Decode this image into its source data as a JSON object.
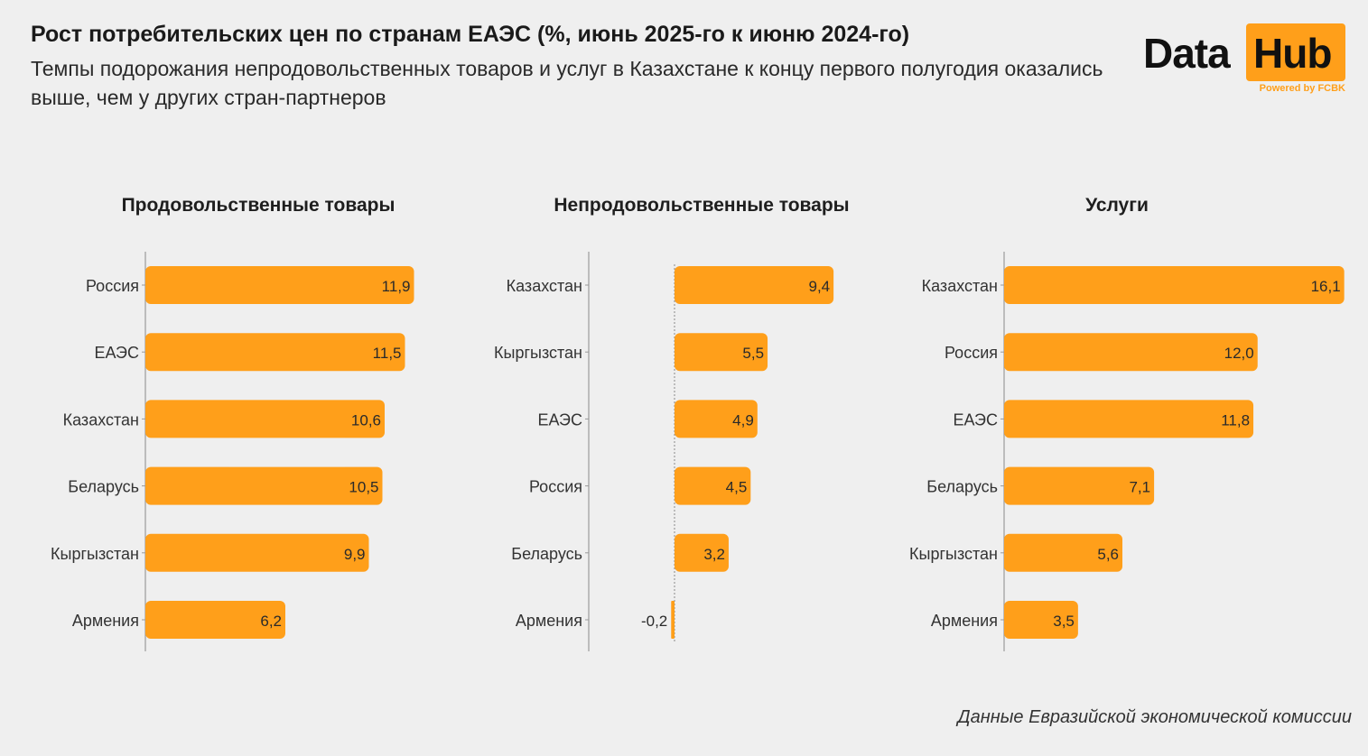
{
  "header": {
    "title": "Рост потребительских цен по странам ЕАЭС (%, июнь 2025-го к июню 2024-го)",
    "subtitle": "Темпы подорожания непродовольственных товаров и услуг в Казахстане к концу первого полугодия оказались выше, чем у других стран-партнеров"
  },
  "logo": {
    "word1": "Data",
    "word2": "Hub",
    "powered": "Powered by FCBK"
  },
  "footer": {
    "source": "Данные Евразийской экономической комиссии"
  },
  "colors": {
    "bar": "#ff9f1a",
    "text": "#333333",
    "axis": "#9a9a9a"
  },
  "chart_data": [
    {
      "type": "bar",
      "orientation": "horizontal",
      "title": "Продовольственные товары",
      "categories": [
        "Россия",
        "ЕАЭС",
        "Казахстан",
        "Беларусь",
        "Кыргызстан",
        "Армения"
      ],
      "values": [
        11.9,
        11.5,
        10.6,
        10.5,
        9.9,
        6.2
      ],
      "data_labels": [
        "11,9",
        "11,5",
        "10,6",
        "10,5",
        "9,9",
        "6,2"
      ],
      "xlim": [
        0,
        12
      ]
    },
    {
      "type": "bar",
      "orientation": "horizontal",
      "title": "Непродовольственные товары",
      "categories": [
        "Казахстан",
        "Кыргызстан",
        "ЕАЭС",
        "Россия",
        "Беларусь",
        "Армения"
      ],
      "values": [
        9.4,
        5.5,
        4.9,
        4.5,
        3.2,
        -0.2
      ],
      "data_labels": [
        "9,4",
        "5,5",
        "4,9",
        "4,5",
        "3,2",
        "-0,2"
      ],
      "xlim": [
        -5,
        9.5
      ]
    },
    {
      "type": "bar",
      "orientation": "horizontal",
      "title": "Услуги",
      "categories": [
        "Казахстан",
        "Россия",
        "ЕАЭС",
        "Беларусь",
        "Кыргызстан",
        "Армения"
      ],
      "values": [
        16.1,
        12.0,
        11.8,
        7.1,
        5.6,
        3.5
      ],
      "data_labels": [
        "16,1",
        "12,0",
        "11,8",
        "7,1",
        "5,6",
        "3,5"
      ],
      "xlim": [
        0,
        16.2
      ]
    }
  ]
}
